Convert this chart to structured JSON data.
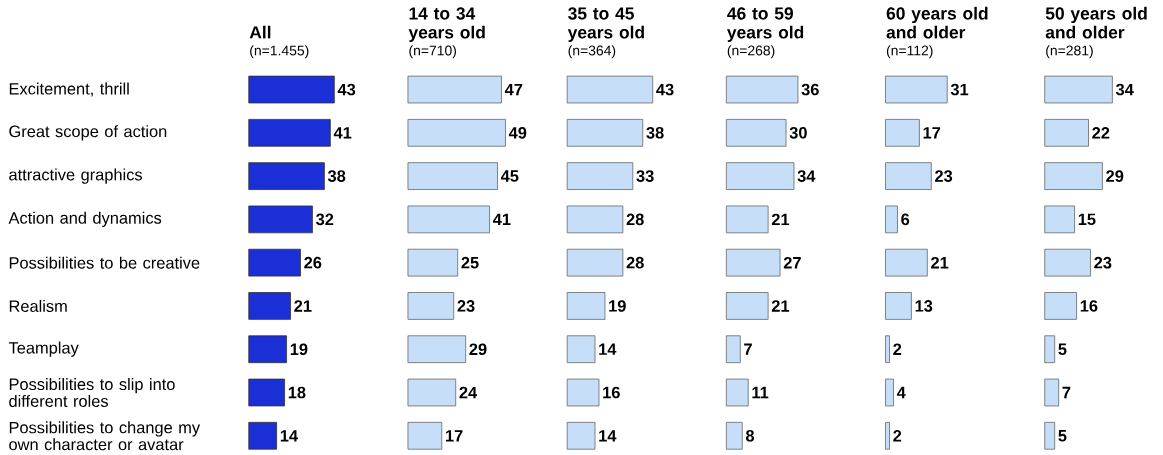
{
  "chart_data": [
    {
      "type": "bar",
      "orientation": "horizontal",
      "title": "All",
      "subtitle": "(n=1.455)",
      "categories": [
        "Excitement, thrill",
        "Great scope of action",
        "attractive graphics",
        "Action and dynamics",
        "Possibilities to be creative",
        "Realism",
        "Teamplay",
        "Possibilities to slip into different roles",
        "Possibilities to change my own character or avatar"
      ],
      "values": [
        43,
        41,
        38,
        32,
        26,
        21,
        19,
        18,
        14
      ],
      "color": "#1a2fd6",
      "data_labels": true,
      "tick_labels": "y"
    },
    {
      "type": "bar",
      "orientation": "horizontal",
      "title": "14 to 34 years old",
      "subtitle": "(n=710)",
      "values": [
        47,
        49,
        45,
        41,
        25,
        23,
        29,
        24,
        17
      ],
      "color": "#c6def7",
      "data_labels": true,
      "tick_labels": false
    },
    {
      "type": "bar",
      "orientation": "horizontal",
      "title": "35 to 45 years old",
      "subtitle": "(n=364)",
      "values": [
        43,
        38,
        33,
        28,
        28,
        19,
        14,
        16,
        14
      ],
      "color": "#c6def7",
      "data_labels": true,
      "tick_labels": false
    },
    {
      "type": "bar",
      "orientation": "horizontal",
      "title": "46 to 59 years old",
      "subtitle": "(n=268)",
      "values": [
        36,
        30,
        34,
        21,
        27,
        21,
        7,
        11,
        8
      ],
      "color": "#c6def7",
      "data_labels": true,
      "tick_labels": false
    },
    {
      "type": "bar",
      "orientation": "horizontal",
      "title": "60 years old and older",
      "subtitle": "(n=112)",
      "values": [
        31,
        17,
        23,
        6,
        21,
        13,
        2,
        4,
        2
      ],
      "color": "#c6def7",
      "data_labels": true,
      "tick_labels": false
    },
    {
      "type": "bar",
      "orientation": "horizontal",
      "title": "50 years old and older",
      "subtitle": "(n=281)",
      "values": [
        34,
        22,
        29,
        15,
        23,
        16,
        5,
        7,
        5
      ],
      "color": "#c6def7",
      "data_labels": true,
      "tick_labels": false
    }
  ]
}
